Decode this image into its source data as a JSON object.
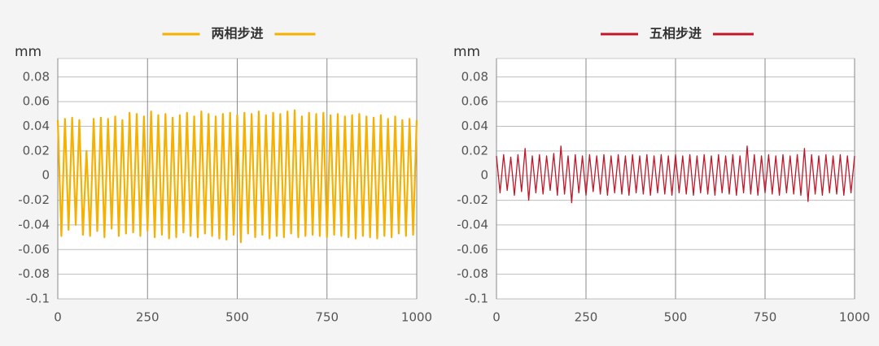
{
  "chart_data": [
    {
      "type": "line",
      "y_label": "mm",
      "xlim": [
        0,
        1000
      ],
      "xticks": [
        0,
        250,
        500,
        750,
        1000
      ],
      "ylim": [
        -0.1,
        0.095
      ],
      "yticks": [
        -0.1,
        -0.08,
        -0.06,
        -0.04,
        -0.02,
        0,
        0.02,
        0.04,
        0.06,
        0.08
      ],
      "grid": true,
      "x": [
        0,
        10,
        20,
        30,
        40,
        50,
        60,
        70,
        80,
        90,
        100,
        110,
        120,
        130,
        140,
        150,
        160,
        170,
        180,
        190,
        200,
        210,
        220,
        230,
        240,
        250,
        260,
        270,
        280,
        290,
        300,
        310,
        320,
        330,
        340,
        350,
        360,
        370,
        380,
        390,
        400,
        410,
        420,
        430,
        440,
        450,
        460,
        470,
        480,
        490,
        500,
        510,
        520,
        530,
        540,
        550,
        560,
        570,
        580,
        590,
        600,
        610,
        620,
        630,
        640,
        650,
        660,
        670,
        680,
        690,
        700,
        710,
        720,
        730,
        740,
        750,
        760,
        770,
        780,
        790,
        800,
        810,
        820,
        830,
        840,
        850,
        860,
        870,
        880,
        890,
        900,
        910,
        920,
        930,
        940,
        950,
        960,
        970,
        980,
        990,
        1000
      ],
      "series": [
        {
          "name": "两相步进",
          "color": "#f5b000",
          "values": [
            0.045,
            -0.049,
            0.046,
            -0.044,
            0.047,
            -0.04,
            0.045,
            -0.048,
            0.02,
            -0.049,
            0.046,
            -0.045,
            0.047,
            -0.05,
            0.046,
            -0.043,
            0.048,
            -0.049,
            0.045,
            -0.047,
            0.051,
            -0.046,
            0.05,
            -0.049,
            0.048,
            -0.045,
            0.052,
            -0.05,
            0.049,
            -0.048,
            0.05,
            -0.051,
            0.047,
            -0.05,
            0.049,
            -0.046,
            0.051,
            -0.049,
            0.048,
            -0.05,
            0.052,
            -0.047,
            0.05,
            -0.049,
            0.048,
            -0.051,
            0.05,
            -0.052,
            0.051,
            -0.048,
            0.049,
            -0.054,
            0.051,
            -0.047,
            0.05,
            -0.05,
            0.052,
            -0.048,
            0.049,
            -0.051,
            0.051,
            -0.049,
            0.05,
            -0.05,
            0.052,
            -0.047,
            0.053,
            -0.05,
            0.048,
            -0.049,
            0.051,
            -0.048,
            0.05,
            -0.049,
            0.051,
            -0.05,
            0.049,
            -0.048,
            0.05,
            -0.049,
            0.048,
            -0.05,
            0.049,
            -0.051,
            0.05,
            -0.049,
            0.048,
            -0.05,
            0.047,
            -0.051,
            0.049,
            -0.049,
            0.046,
            -0.05,
            0.048,
            -0.047,
            0.045,
            -0.049,
            0.046,
            -0.048,
            0.045
          ]
        }
      ]
    },
    {
      "type": "line",
      "y_label": "mm",
      "xlim": [
        0,
        1000
      ],
      "xticks": [
        0,
        250,
        500,
        750,
        1000
      ],
      "ylim": [
        -0.1,
        0.095
      ],
      "yticks": [
        -0.1,
        -0.08,
        -0.06,
        -0.04,
        -0.02,
        0,
        0.02,
        0.04,
        0.06,
        0.08
      ],
      "grid": true,
      "x": [
        0,
        10,
        20,
        30,
        40,
        50,
        60,
        70,
        80,
        90,
        100,
        110,
        120,
        130,
        140,
        150,
        160,
        170,
        180,
        190,
        200,
        210,
        220,
        230,
        240,
        250,
        260,
        270,
        280,
        290,
        300,
        310,
        320,
        330,
        340,
        350,
        360,
        370,
        380,
        390,
        400,
        410,
        420,
        430,
        440,
        450,
        460,
        470,
        480,
        490,
        500,
        510,
        520,
        530,
        540,
        550,
        560,
        570,
        580,
        590,
        600,
        610,
        620,
        630,
        640,
        650,
        660,
        670,
        680,
        690,
        700,
        710,
        720,
        730,
        740,
        750,
        760,
        770,
        780,
        790,
        800,
        810,
        820,
        830,
        840,
        850,
        860,
        870,
        880,
        890,
        900,
        910,
        920,
        930,
        940,
        950,
        960,
        970,
        980,
        990,
        1000
      ],
      "series": [
        {
          "name": "五相步进",
          "color": "#c0182a",
          "values": [
            0.016,
            -0.014,
            0.017,
            -0.012,
            0.015,
            -0.016,
            0.017,
            -0.013,
            0.022,
            -0.02,
            0.016,
            -0.014,
            0.017,
            -0.015,
            0.016,
            -0.012,
            0.018,
            -0.016,
            0.024,
            -0.015,
            0.016,
            -0.022,
            0.017,
            -0.014,
            0.016,
            -0.016,
            0.017,
            -0.013,
            0.016,
            -0.015,
            0.017,
            -0.016,
            0.016,
            -0.014,
            0.017,
            -0.015,
            0.016,
            -0.016,
            0.017,
            -0.014,
            0.016,
            -0.015,
            0.017,
            -0.016,
            0.016,
            -0.014,
            0.017,
            -0.015,
            0.016,
            -0.016,
            0.017,
            -0.014,
            0.016,
            -0.015,
            0.017,
            -0.016,
            0.016,
            -0.014,
            0.017,
            -0.015,
            0.016,
            -0.016,
            0.017,
            -0.014,
            0.016,
            -0.015,
            0.017,
            -0.016,
            0.016,
            -0.014,
            0.024,
            -0.015,
            0.017,
            -0.016,
            0.016,
            -0.014,
            0.017,
            -0.015,
            0.016,
            -0.016,
            0.017,
            -0.014,
            0.016,
            -0.015,
            0.017,
            -0.016,
            0.022,
            -0.021,
            0.017,
            -0.015,
            0.016,
            -0.016,
            0.017,
            -0.014,
            0.016,
            -0.015,
            0.017,
            -0.016,
            0.016,
            -0.014,
            0.016
          ]
        }
      ]
    }
  ]
}
